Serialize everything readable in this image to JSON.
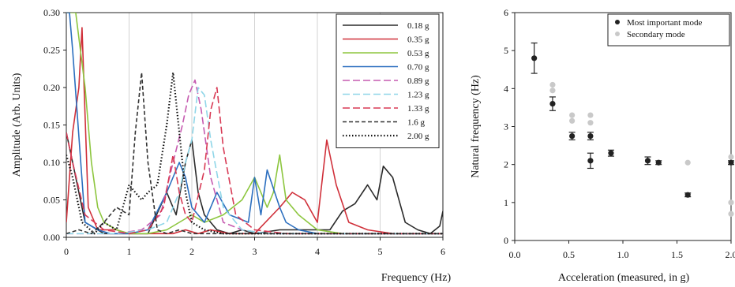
{
  "chart_data": [
    {
      "type": "line",
      "xlabel": "Frequency (Hz)",
      "ylabel": "Amplitude (Arb. Units)",
      "xlim": [
        0,
        6
      ],
      "ylim": [
        0,
        0.3
      ],
      "x_ticks": [
        "0",
        "1",
        "2",
        "3",
        "4",
        "5",
        "6"
      ],
      "y_ticks": [
        "0.00",
        "0.05",
        "0.10",
        "0.15",
        "0.20",
        "0.25",
        "0.30"
      ],
      "x_tick_values": [
        0,
        1,
        2,
        3,
        4,
        5,
        6
      ],
      "y_tick_values": [
        0,
        0.05,
        0.1,
        0.15,
        0.2,
        0.25,
        0.3
      ],
      "grid": "vertical",
      "legend_position": "top-right",
      "series": [
        {
          "name": "0.18 g",
          "color": "#2b2b2b",
          "dash": "solid",
          "x": [
            0,
            0.1,
            0.3,
            0.6,
            1.0,
            1.3,
            1.6,
            1.75,
            1.9,
            2.0,
            2.1,
            2.2,
            2.4,
            2.6,
            2.8,
            3.0,
            3.4,
            3.8,
            4.2,
            4.4,
            4.6,
            4.8,
            4.95,
            5.05,
            5.2,
            5.4,
            5.6,
            5.8,
            5.95,
            6.0
          ],
          "y": [
            0.14,
            0.1,
            0.02,
            0.005,
            0.005,
            0.005,
            0.06,
            0.03,
            0.1,
            0.13,
            0.06,
            0.03,
            0.01,
            0.005,
            0.01,
            0.005,
            0.01,
            0.01,
            0.01,
            0.035,
            0.045,
            0.07,
            0.05,
            0.095,
            0.08,
            0.02,
            0.01,
            0.005,
            0.015,
            0.035
          ]
        },
        {
          "name": "0.35 g",
          "color": "#d0303a",
          "dash": "solid",
          "x": [
            0,
            0.1,
            0.2,
            0.25,
            0.35,
            0.5,
            0.8,
            1.0,
            1.3,
            1.7,
            1.9,
            2.1,
            2.3,
            2.6,
            3.0,
            3.4,
            3.6,
            3.8,
            4.0,
            4.15,
            4.3,
            4.5,
            4.8,
            5.2,
            5.6,
            6.0
          ],
          "y": [
            0.02,
            0.14,
            0.2,
            0.28,
            0.04,
            0.01,
            0.01,
            0.005,
            0.005,
            0.005,
            0.01,
            0.005,
            0.01,
            0.005,
            0.005,
            0.04,
            0.06,
            0.05,
            0.02,
            0.13,
            0.07,
            0.02,
            0.01,
            0.005,
            0.005,
            0.005
          ]
        },
        {
          "name": "0.53 g",
          "color": "#8dc63f",
          "dash": "solid",
          "x": [
            0,
            0.15,
            0.3,
            0.4,
            0.5,
            0.6,
            0.8,
            1.0,
            1.3,
            1.6,
            1.8,
            2.0,
            2.2,
            2.5,
            2.8,
            3.0,
            3.2,
            3.3,
            3.4,
            3.5,
            3.7,
            4.0,
            4.4,
            5.0,
            5.6,
            6.0
          ],
          "y": [
            0.3,
            0.3,
            0.2,
            0.1,
            0.04,
            0.02,
            0.01,
            0.005,
            0.005,
            0.01,
            0.02,
            0.03,
            0.02,
            0.03,
            0.05,
            0.08,
            0.04,
            0.06,
            0.11,
            0.05,
            0.03,
            0.01,
            0.005,
            0.005,
            0.005,
            0.005
          ]
        },
        {
          "name": "0.70 g",
          "color": "#2c6fbf",
          "dash": "solid",
          "x": [
            0,
            0.05,
            0.1,
            0.3,
            0.5,
            0.7,
            1.0,
            1.3,
            1.6,
            1.8,
            1.9,
            2.0,
            2.2,
            2.4,
            2.6,
            2.9,
            3.0,
            3.1,
            3.2,
            3.4,
            3.5,
            3.7,
            4.0,
            4.5,
            5.0,
            5.6,
            6.0
          ],
          "y": [
            0.3,
            0.3,
            0.25,
            0.02,
            0.01,
            0.005,
            0.005,
            0.01,
            0.06,
            0.1,
            0.08,
            0.04,
            0.02,
            0.06,
            0.03,
            0.02,
            0.08,
            0.03,
            0.09,
            0.04,
            0.02,
            0.01,
            0.005,
            0.005,
            0.005,
            0.005,
            0.005
          ]
        },
        {
          "name": "0.89 g",
          "color": "#c65bb0",
          "dash": "longdash",
          "x": [
            0,
            0.4,
            0.8,
            1.2,
            1.5,
            1.7,
            1.85,
            1.95,
            2.05,
            2.15,
            2.3,
            2.5,
            2.8,
            3.2,
            3.6,
            4.0,
            5.0,
            6.0
          ],
          "y": [
            0.005,
            0.005,
            0.005,
            0.01,
            0.03,
            0.1,
            0.15,
            0.19,
            0.21,
            0.17,
            0.08,
            0.02,
            0.01,
            0.005,
            0.005,
            0.005,
            0.005,
            0.005
          ]
        },
        {
          "name": "1.23 g",
          "color": "#8fd6e8",
          "dash": "longdash",
          "x": [
            0,
            0.4,
            0.8,
            1.3,
            1.6,
            1.8,
            1.9,
            2.0,
            2.1,
            2.2,
            2.3,
            2.5,
            2.8,
            3.2,
            3.6,
            4.0,
            5.0,
            6.0
          ],
          "y": [
            0.005,
            0.005,
            0.005,
            0.01,
            0.02,
            0.06,
            0.1,
            0.13,
            0.2,
            0.19,
            0.13,
            0.04,
            0.01,
            0.005,
            0.005,
            0.005,
            0.005,
            0.005
          ]
        },
        {
          "name": "1.33 g",
          "color": "#d83a55",
          "dash": "longdash",
          "x": [
            0,
            0.1,
            0.3,
            0.6,
            1.0,
            1.3,
            1.55,
            1.7,
            1.8,
            1.9,
            2.0,
            2.2,
            2.3,
            2.4,
            2.5,
            2.7,
            3.0,
            3.5,
            4.0,
            5.0,
            6.0
          ],
          "y": [
            0.14,
            0.1,
            0.03,
            0.01,
            0.005,
            0.01,
            0.04,
            0.11,
            0.06,
            0.03,
            0.02,
            0.09,
            0.17,
            0.2,
            0.12,
            0.03,
            0.01,
            0.005,
            0.005,
            0.005,
            0.005
          ]
        },
        {
          "name": "1.6 g",
          "color": "#333333",
          "dash": "dash",
          "x": [
            0,
            0.2,
            0.4,
            0.6,
            0.8,
            1.0,
            1.1,
            1.2,
            1.3,
            1.45,
            1.6,
            1.8,
            2.0,
            2.2,
            2.5,
            3.0,
            3.5,
            4.0,
            5.0,
            6.0
          ],
          "y": [
            0.005,
            0.01,
            0.005,
            0.02,
            0.04,
            0.03,
            0.14,
            0.22,
            0.1,
            0.01,
            0.005,
            0.01,
            0.005,
            0.005,
            0.005,
            0.005,
            0.005,
            0.005,
            0.005,
            0.005
          ]
        },
        {
          "name": "2.00 g",
          "color": "#111111",
          "dash": "dot",
          "x": [
            0,
            0.1,
            0.25,
            0.45,
            0.6,
            0.8,
            1.0,
            1.1,
            1.2,
            1.3,
            1.45,
            1.6,
            1.7,
            1.8,
            1.9,
            2.0,
            2.2,
            2.5,
            3.0,
            4.0,
            5.0,
            6.0
          ],
          "y": [
            0.11,
            0.08,
            0.02,
            0.005,
            0.02,
            0.01,
            0.07,
            0.06,
            0.05,
            0.06,
            0.07,
            0.15,
            0.22,
            0.14,
            0.06,
            0.02,
            0.01,
            0.005,
            0.005,
            0.005,
            0.005,
            0.005
          ]
        }
      ]
    },
    {
      "type": "scatter",
      "xlabel": "Acceleration (measured, in g)",
      "ylabel": "Natural frequency (Hz)",
      "xlim": [
        0,
        2.0
      ],
      "ylim": [
        0,
        6
      ],
      "x_ticks": [
        "0.0",
        "0.5",
        "1.0",
        "1.5",
        "2.0"
      ],
      "y_ticks": [
        "0",
        "1",
        "2",
        "3",
        "4",
        "5",
        "6"
      ],
      "x_tick_values": [
        0,
        0.5,
        1.0,
        1.5,
        2.0
      ],
      "y_tick_values": [
        0,
        1,
        2,
        3,
        4,
        5,
        6
      ],
      "grid": "none",
      "legend_position": "top-right",
      "series": [
        {
          "name": "Most important mode",
          "color": "#222222",
          "x": [
            0.18,
            0.35,
            0.53,
            0.7,
            0.7,
            0.89,
            1.23,
            1.33,
            1.6,
            2.0
          ],
          "y": [
            4.8,
            3.6,
            2.75,
            2.75,
            2.1,
            2.3,
            2.1,
            2.05,
            1.2,
            2.05
          ],
          "err": [
            0.4,
            0.18,
            0.1,
            0.1,
            0.2,
            0.08,
            0.1,
            0.05,
            0.05,
            0.05
          ]
        },
        {
          "name": "Secondary mode",
          "color": "#c9c9c9",
          "x": [
            0.35,
            0.35,
            0.53,
            0.53,
            0.7,
            0.7,
            1.6,
            2.0,
            2.0,
            2.0
          ],
          "y": [
            4.1,
            3.95,
            3.3,
            3.15,
            3.3,
            3.1,
            2.05,
            2.2,
            1.0,
            0.7
          ],
          "err": [
            0,
            0,
            0,
            0,
            0,
            0,
            0,
            0,
            0,
            0
          ]
        }
      ]
    }
  ]
}
